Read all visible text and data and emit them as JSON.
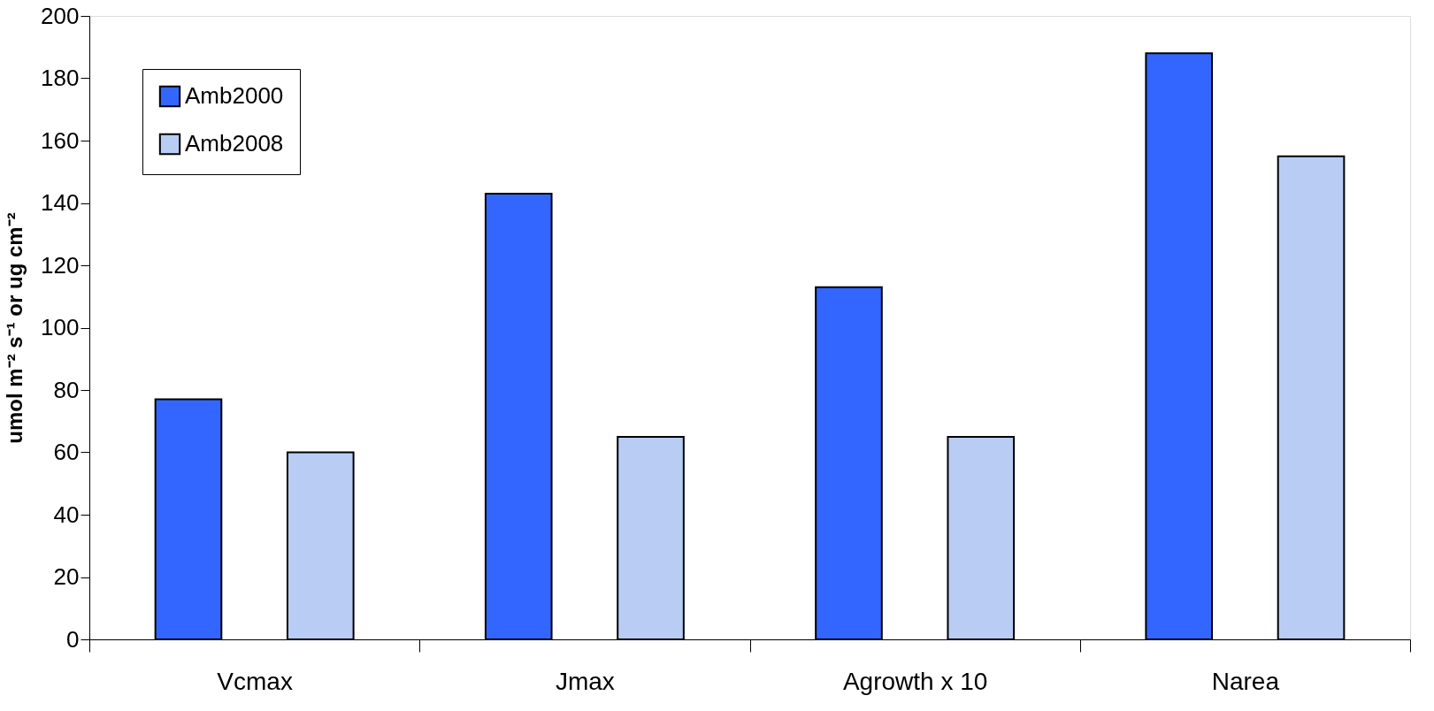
{
  "chart_data": {
    "type": "bar",
    "ylabel": "umol m⁻² s⁻¹ or ug cm⁻²",
    "categories": [
      "Vcmax",
      "Jmax",
      "Agrowth x 10",
      "Narea"
    ],
    "series": [
      {
        "name": "Amb2000",
        "color": "#3366ff",
        "values": [
          77,
          143,
          113,
          188
        ]
      },
      {
        "name": "Amb2008",
        "color": "#b8ccf4",
        "values": [
          60,
          65,
          65,
          155
        ]
      }
    ],
    "ylim": [
      0,
      200
    ],
    "yticks": [
      0,
      20,
      40,
      60,
      80,
      100,
      120,
      140,
      160,
      180,
      200
    ],
    "grid": false,
    "legend": "top left"
  }
}
